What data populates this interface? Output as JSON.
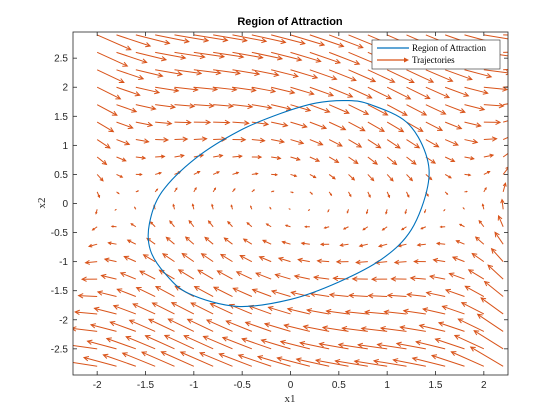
{
  "chart_data": {
    "type": "line",
    "title": "Region of Attraction",
    "xlabel": "x1",
    "ylabel": "x2",
    "xlim": [
      -2.25,
      2.25
    ],
    "ylim": [
      -2.95,
      2.95
    ],
    "xticks": [
      -2,
      -1.5,
      -1,
      -0.5,
      0,
      0.5,
      1,
      1.5,
      2
    ],
    "xtick_labels": [
      "-2",
      "-1.5",
      "-1",
      "-0.5",
      "0",
      "0.5",
      "1",
      "1.5",
      "2"
    ],
    "yticks": [
      -2.5,
      -2,
      -1.5,
      -1,
      -0.5,
      0,
      0.5,
      1,
      1.5,
      2,
      2.5
    ],
    "ytick_labels": [
      "-2.5",
      "-2",
      "-1.5",
      "-1",
      "-0.5",
      "0",
      "0.5",
      "1",
      "1.5",
      "2",
      "2.5"
    ],
    "grid": false,
    "legend_position": "top-right",
    "colors": {
      "region": "#0072BD",
      "trajectories": "#D95319"
    },
    "series": [
      {
        "name": "Region of Attraction",
        "kind": "closed-curve",
        "x": [
          0.83,
          0.6,
          0.27,
          -0.1,
          -0.53,
          -0.98,
          -1.33,
          -1.46,
          -1.45,
          -1.3,
          -1.05,
          -0.55,
          0.0,
          0.5,
          0.95,
          1.25,
          1.42,
          1.4,
          1.2,
          0.83
        ],
        "y": [
          1.7,
          1.77,
          1.73,
          1.55,
          1.25,
          0.78,
          0.2,
          -0.35,
          -0.8,
          -1.2,
          -1.55,
          -1.77,
          -1.65,
          -1.35,
          -0.95,
          -0.45,
          0.3,
          0.85,
          1.4,
          1.7
        ]
      },
      {
        "name": "Trajectories",
        "kind": "quiver",
        "grid_x": [
          -2.0,
          -1.8,
          -1.6,
          -1.4,
          -1.2,
          -1.0,
          -0.8,
          -0.6,
          -0.4,
          -0.2,
          0.0,
          0.2,
          0.4,
          0.6,
          0.8,
          1.0,
          1.2,
          1.4,
          1.6,
          1.8,
          2.0,
          2.2
        ],
        "grid_y": [
          -2.8,
          -2.5,
          -2.2,
          -1.9,
          -1.6,
          -1.3,
          -1.0,
          -0.7,
          -0.4,
          -0.1,
          0.2,
          0.5,
          0.8,
          1.1,
          1.4,
          1.7,
          2.0,
          2.3,
          2.6,
          2.9
        ],
        "field": "u = x2, v = -x1 - 0.5*x2 + x1^3/3",
        "arrow_scale": 0.12
      }
    ]
  }
}
